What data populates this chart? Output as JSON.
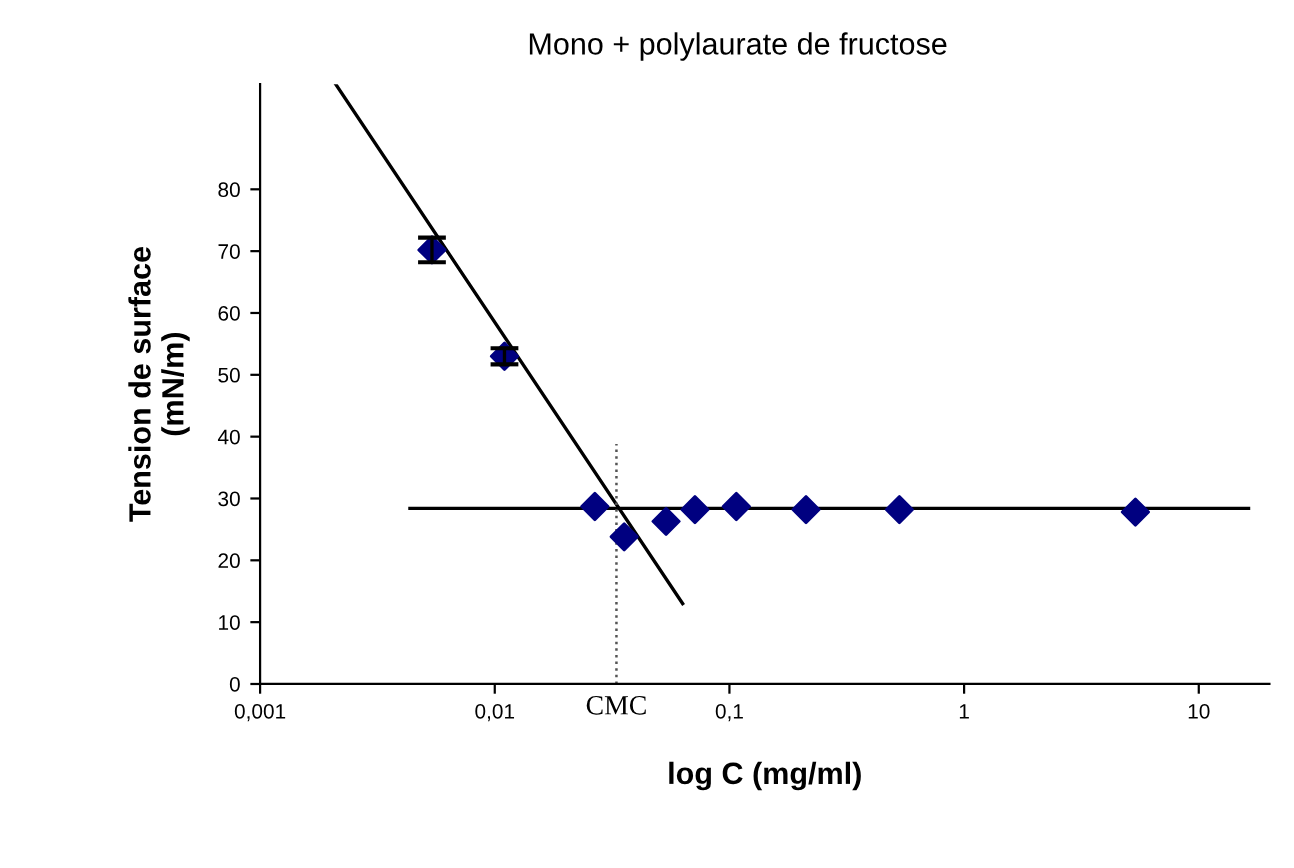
{
  "chart_data": {
    "type": "scatter",
    "title": "Mono + polylaurate de fructose",
    "xlabel": "log C (mg/ml)",
    "ylabel": "Tension de surface\n(mN/m)",
    "log": "x",
    "xlim": [
      0.001,
      20
    ],
    "xticks": [
      {
        "value": 0.001,
        "label": "0,001"
      },
      {
        "value": 0.01,
        "label": "0,01"
      },
      {
        "value": 0.1,
        "label": "0,1"
      },
      1,
      10
    ],
    "ylim": [
      0,
      97
    ],
    "yticks": [
      0,
      10,
      20,
      30,
      40,
      50,
      60,
      70,
      80
    ],
    "grid": false,
    "legend": false,
    "series": [
      {
        "color": "#000080",
        "marker": "diamond",
        "x": [
          0.0054,
          0.011,
          0.0267,
          0.0356,
          0.0537,
          0.0713,
          0.107,
          0.212,
          0.53,
          5.37
        ],
        "values": [
          70.2,
          53,
          28.7,
          23.8,
          26.3,
          28.2,
          28.7,
          28.2,
          28.2,
          27.8
        ],
        "errors": [
          2,
          1.3,
          null,
          null,
          null,
          null,
          null,
          null,
          null,
          null
        ]
      },
      {
        "type": "line",
        "color": "#000000",
        "marker": "none",
        "line_style": "solid",
        "x": [
          0.0021,
          0.0632
        ],
        "values": [
          97,
          13
        ]
      },
      {
        "type": "line",
        "color": "#000000",
        "marker": "none",
        "line_style": "solid",
        "x": [
          0.00435,
          16.3
        ],
        "values": [
          28.4,
          28.4
        ]
      }
    ],
    "ref_lines": [
      {
        "axis": "x",
        "value": 0.033,
        "label": "CMC",
        "color": "#555555",
        "line_style": "dotted"
      }
    ]
  }
}
